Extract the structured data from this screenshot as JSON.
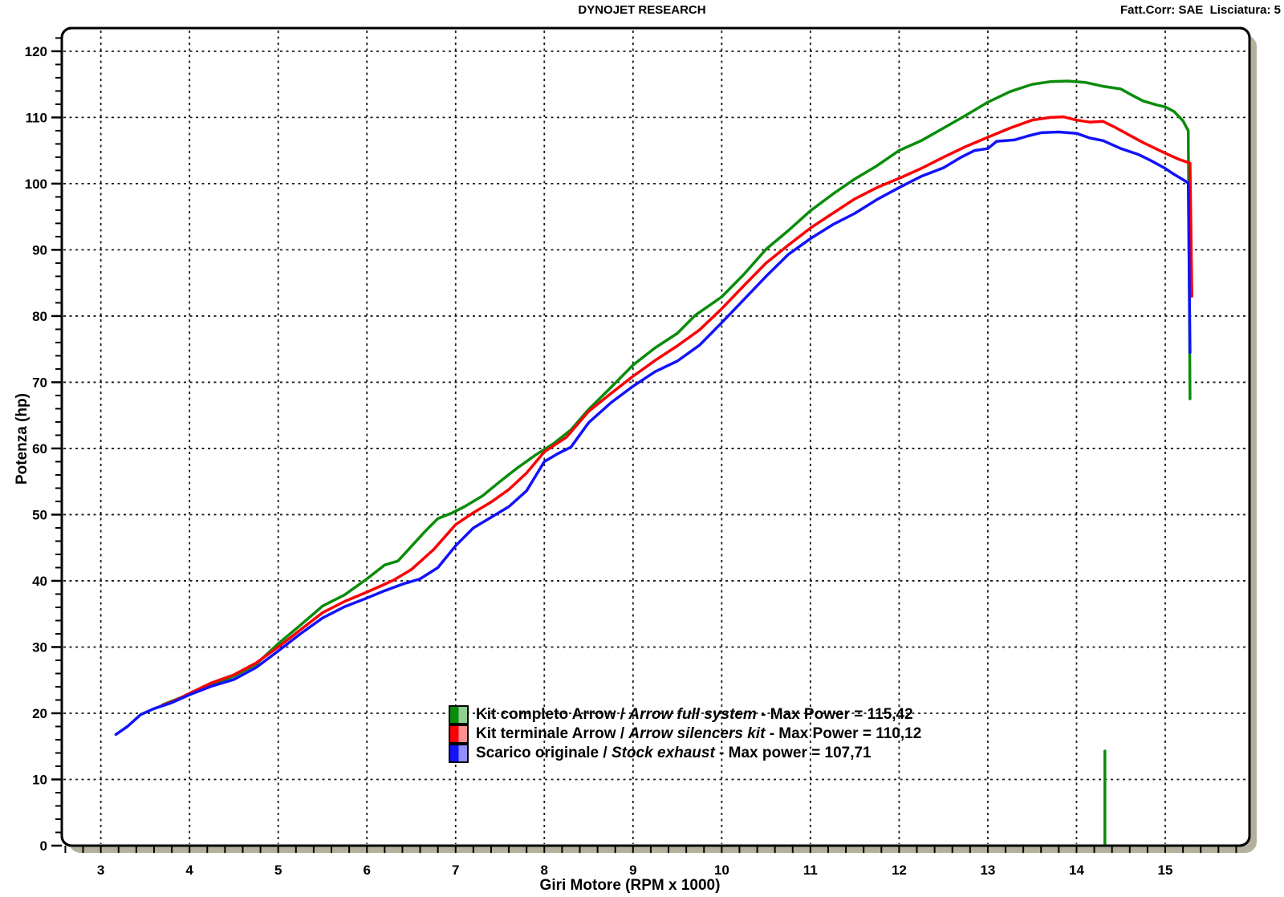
{
  "header": {
    "title": "DYNOJET RESEARCH",
    "correction": "Fatt.Corr: SAE  Lisciatura: 5"
  },
  "chart_data": {
    "type": "line",
    "title": "DYNOJET RESEARCH",
    "xlabel": "Giri Motore (RPM x 1000)",
    "ylabel": "Potenza (hp)",
    "xlim": [
      2.56,
      15.95
    ],
    "ylim": [
      0,
      123.5
    ],
    "x_ticks": [
      3,
      4,
      5,
      6,
      7,
      8,
      9,
      10,
      11,
      12,
      13,
      14,
      15
    ],
    "y_ticks": [
      0,
      10,
      20,
      30,
      40,
      50,
      60,
      70,
      80,
      90,
      100,
      110,
      120
    ],
    "x_minor_step": 0.2,
    "y_minor_step": 2,
    "grid": "dashed",
    "grid_color": "#1a1a1a",
    "frame_shadow_color": "#b3b09b",
    "legend_position": "bottom-center-inside",
    "series": [
      {
        "name": "Kit completo Arrow / Arrow full system",
        "max_power": 115.42,
        "color": "#0a8c0a",
        "points": [
          [
            3.7,
            21.3
          ],
          [
            3.85,
            22.1
          ],
          [
            4.0,
            22.9
          ],
          [
            4.25,
            24.3
          ],
          [
            4.5,
            25.6
          ],
          [
            4.75,
            27.4
          ],
          [
            5.0,
            30.5
          ],
          [
            5.25,
            33.3
          ],
          [
            5.5,
            36.2
          ],
          [
            5.75,
            37.9
          ],
          [
            6.0,
            40.3
          ],
          [
            6.2,
            42.4
          ],
          [
            6.35,
            43.0
          ],
          [
            6.5,
            45.2
          ],
          [
            6.65,
            47.4
          ],
          [
            6.8,
            49.4
          ],
          [
            6.95,
            50.2
          ],
          [
            7.1,
            51.2
          ],
          [
            7.3,
            52.8
          ],
          [
            7.5,
            55.0
          ],
          [
            7.7,
            57.1
          ],
          [
            7.9,
            59.0
          ],
          [
            8.1,
            60.7
          ],
          [
            8.3,
            62.8
          ],
          [
            8.5,
            65.9
          ],
          [
            8.75,
            69.2
          ],
          [
            9.0,
            72.6
          ],
          [
            9.25,
            75.2
          ],
          [
            9.5,
            77.4
          ],
          [
            9.7,
            80.1
          ],
          [
            10.0,
            82.9
          ],
          [
            10.25,
            86.3
          ],
          [
            10.5,
            90.1
          ],
          [
            10.75,
            92.9
          ],
          [
            11.0,
            95.9
          ],
          [
            11.25,
            98.4
          ],
          [
            11.5,
            100.7
          ],
          [
            11.75,
            102.7
          ],
          [
            12.0,
            105.0
          ],
          [
            12.25,
            106.5
          ],
          [
            12.5,
            108.4
          ],
          [
            12.75,
            110.3
          ],
          [
            13.0,
            112.3
          ],
          [
            13.25,
            113.9
          ],
          [
            13.5,
            115.0
          ],
          [
            13.7,
            115.4
          ],
          [
            13.9,
            115.5
          ],
          [
            14.1,
            115.3
          ],
          [
            14.3,
            114.7
          ],
          [
            14.5,
            114.3
          ],
          [
            14.62,
            113.4
          ],
          [
            14.75,
            112.5
          ],
          [
            14.9,
            111.9
          ],
          [
            15.0,
            111.6
          ],
          [
            15.1,
            110.9
          ],
          [
            15.2,
            109.5
          ],
          [
            15.26,
            108.0
          ],
          [
            15.28,
            67.5
          ]
        ]
      },
      {
        "name": "Kit terminale Arrow / Arrow silencers kit",
        "max_power": 110.12,
        "color": "#fb0007",
        "points": [
          [
            3.66,
            21.0
          ],
          [
            3.85,
            22.0
          ],
          [
            4.0,
            23.0
          ],
          [
            4.25,
            24.6
          ],
          [
            4.5,
            25.8
          ],
          [
            4.75,
            27.6
          ],
          [
            5.0,
            30.0
          ],
          [
            5.25,
            32.6
          ],
          [
            5.5,
            35.2
          ],
          [
            5.75,
            36.9
          ],
          [
            6.0,
            38.3
          ],
          [
            6.15,
            39.2
          ],
          [
            6.3,
            40.1
          ],
          [
            6.5,
            41.7
          ],
          [
            6.75,
            44.7
          ],
          [
            7.0,
            48.5
          ],
          [
            7.2,
            50.3
          ],
          [
            7.4,
            51.9
          ],
          [
            7.6,
            53.8
          ],
          [
            7.8,
            56.3
          ],
          [
            8.0,
            59.5
          ],
          [
            8.25,
            61.7
          ],
          [
            8.5,
            65.6
          ],
          [
            8.75,
            68.3
          ],
          [
            9.0,
            70.9
          ],
          [
            9.25,
            73.3
          ],
          [
            9.5,
            75.5
          ],
          [
            9.75,
            77.9
          ],
          [
            10.0,
            81.1
          ],
          [
            10.25,
            84.6
          ],
          [
            10.5,
            88.0
          ],
          [
            10.75,
            90.7
          ],
          [
            11.0,
            93.3
          ],
          [
            11.25,
            95.5
          ],
          [
            11.5,
            97.7
          ],
          [
            11.75,
            99.4
          ],
          [
            12.0,
            100.8
          ],
          [
            12.25,
            102.3
          ],
          [
            12.5,
            104.0
          ],
          [
            12.75,
            105.6
          ],
          [
            13.0,
            107.0
          ],
          [
            13.25,
            108.4
          ],
          [
            13.5,
            109.6
          ],
          [
            13.7,
            110.0
          ],
          [
            13.85,
            110.1
          ],
          [
            14.0,
            109.6
          ],
          [
            14.15,
            109.3
          ],
          [
            14.3,
            109.4
          ],
          [
            14.45,
            108.4
          ],
          [
            14.6,
            107.3
          ],
          [
            14.75,
            106.2
          ],
          [
            15.0,
            104.6
          ],
          [
            15.15,
            103.7
          ],
          [
            15.28,
            103.1
          ],
          [
            15.3,
            83.0
          ]
        ]
      },
      {
        "name": "Scarico originale / Stock exhaust",
        "max_power": 107.71,
        "color": "#1212fb",
        "points": [
          [
            3.17,
            16.8
          ],
          [
            3.3,
            18.0
          ],
          [
            3.45,
            19.8
          ],
          [
            3.6,
            20.7
          ],
          [
            3.8,
            21.6
          ],
          [
            4.0,
            22.8
          ],
          [
            4.25,
            24.1
          ],
          [
            4.5,
            25.1
          ],
          [
            4.75,
            26.9
          ],
          [
            5.0,
            29.4
          ],
          [
            5.25,
            32.0
          ],
          [
            5.5,
            34.4
          ],
          [
            5.75,
            36.1
          ],
          [
            6.0,
            37.4
          ],
          [
            6.2,
            38.5
          ],
          [
            6.4,
            39.5
          ],
          [
            6.6,
            40.3
          ],
          [
            6.8,
            42.0
          ],
          [
            7.0,
            45.3
          ],
          [
            7.2,
            48.0
          ],
          [
            7.4,
            49.6
          ],
          [
            7.6,
            51.2
          ],
          [
            7.8,
            53.6
          ],
          [
            8.0,
            58.0
          ],
          [
            8.15,
            59.2
          ],
          [
            8.3,
            60.2
          ],
          [
            8.5,
            63.9
          ],
          [
            8.75,
            66.9
          ],
          [
            9.0,
            69.4
          ],
          [
            9.25,
            71.6
          ],
          [
            9.5,
            73.2
          ],
          [
            9.75,
            75.6
          ],
          [
            10.0,
            79.0
          ],
          [
            10.25,
            82.5
          ],
          [
            10.5,
            86.0
          ],
          [
            10.75,
            89.3
          ],
          [
            11.0,
            91.7
          ],
          [
            11.25,
            93.8
          ],
          [
            11.5,
            95.5
          ],
          [
            11.75,
            97.6
          ],
          [
            12.0,
            99.4
          ],
          [
            12.25,
            101.1
          ],
          [
            12.5,
            102.4
          ],
          [
            12.7,
            104.0
          ],
          [
            12.85,
            105.0
          ],
          [
            13.0,
            105.3
          ],
          [
            13.1,
            106.4
          ],
          [
            13.3,
            106.6
          ],
          [
            13.45,
            107.2
          ],
          [
            13.6,
            107.7
          ],
          [
            13.8,
            107.8
          ],
          [
            14.0,
            107.6
          ],
          [
            14.15,
            106.9
          ],
          [
            14.3,
            106.5
          ],
          [
            14.5,
            105.3
          ],
          [
            14.7,
            104.4
          ],
          [
            14.85,
            103.4
          ],
          [
            15.0,
            102.3
          ],
          [
            15.1,
            101.4
          ],
          [
            15.2,
            100.6
          ],
          [
            15.26,
            100.1
          ],
          [
            15.28,
            74.5
          ]
        ]
      }
    ],
    "extra_segments": [
      {
        "name": "green-dropout-spike",
        "color": "#0a8c0a",
        "points": [
          [
            14.32,
            0
          ],
          [
            14.32,
            14.3
          ]
        ]
      }
    ]
  },
  "legend": {
    "items": [
      {
        "plain": "Kit completo Arrow / ",
        "italic": "Arrow full system",
        "tail": " - Max Power = 115,42",
        "color": "#0a8c0a",
        "color_light": "#90d090"
      },
      {
        "plain": "Kit terminale Arrow / ",
        "italic": "Arrow silencers kit",
        "tail": " - Max Power = 110,12",
        "color": "#fb0007",
        "color_light": "#ff9090"
      },
      {
        "plain": "Scarico originale / ",
        "italic": "Stock exhaust",
        "tail": " - Max power = 107,71",
        "color": "#1212fb",
        "color_light": "#9090ff"
      }
    ]
  }
}
